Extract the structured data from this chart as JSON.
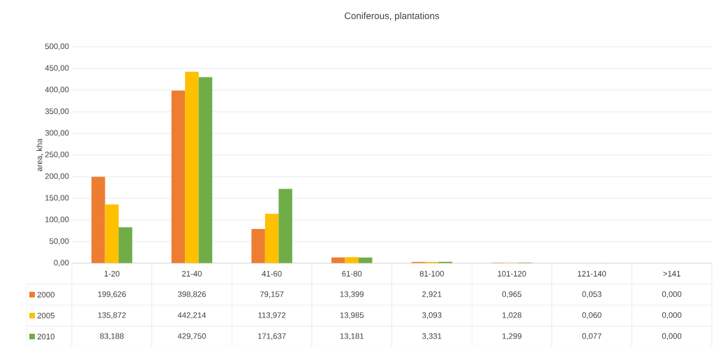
{
  "chart_data": {
    "type": "bar",
    "title": "Coniferous, plantations",
    "ylabel": "area, kha",
    "categories": [
      "1-20",
      "21-40",
      "41-60",
      "61-80",
      "81-100",
      "101-120",
      "121-140",
      ">141"
    ],
    "series": [
      {
        "name": "2000",
        "color": "#ed7d31",
        "values": [
          199.626,
          398.826,
          79.157,
          13.399,
          2.921,
          0.965,
          0.053,
          0.0
        ],
        "value_labels": [
          "199,626",
          "398,826",
          "79,157",
          "13,399",
          "2,921",
          "0,965",
          "0,053",
          "0,000"
        ]
      },
      {
        "name": "2005",
        "color": "#ffc000",
        "values": [
          135.872,
          442.214,
          113.972,
          13.985,
          3.093,
          1.028,
          0.06,
          0.0
        ],
        "value_labels": [
          "135,872",
          "442,214",
          "113,972",
          "13,985",
          "3,093",
          "1,028",
          "0,060",
          "0,000"
        ]
      },
      {
        "name": "2010",
        "color": "#70ad47",
        "values": [
          83.188,
          429.75,
          171.637,
          13.181,
          3.331,
          1.299,
          0.077,
          0.0
        ],
        "value_labels": [
          "83,188",
          "429,750",
          "171,637",
          "13,181",
          "3,331",
          "1,299",
          "0,077",
          "0,000"
        ]
      }
    ],
    "ylim": [
      0,
      500
    ],
    "yticks": [
      {
        "value": 0,
        "label": "0,00"
      },
      {
        "value": 50,
        "label": "50,00"
      },
      {
        "value": 100,
        "label": "100,00"
      },
      {
        "value": 150,
        "label": "150,00"
      },
      {
        "value": 200,
        "label": "200,00"
      },
      {
        "value": 250,
        "label": "250,00"
      },
      {
        "value": 300,
        "label": "300,00"
      },
      {
        "value": 350,
        "label": "350,00"
      },
      {
        "value": 400,
        "label": "400,00"
      },
      {
        "value": 450,
        "label": "450,00"
      },
      {
        "value": 500,
        "label": "500,00"
      }
    ],
    "grid": "y",
    "legend": "bottom"
  }
}
